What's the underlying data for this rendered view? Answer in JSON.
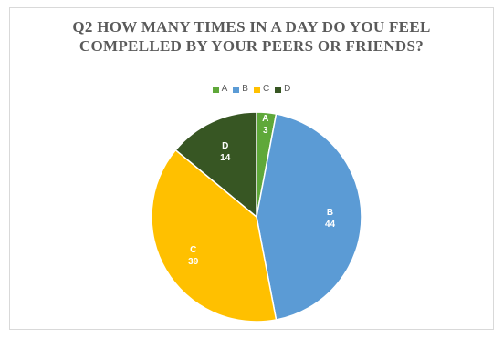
{
  "chart_data": {
    "type": "pie",
    "title_lines": [
      "Q2 HOW MANY TIMES IN A DAY DO YOU FEEL",
      "COMPELLED BY YOUR PEERS OR FRIENDS?"
    ],
    "categories": [
      "A",
      "B",
      "C",
      "D"
    ],
    "values": [
      3,
      44,
      39,
      14
    ],
    "colors": [
      "#5fa83a",
      "#5b9bd5",
      "#ffc000",
      "#375623"
    ],
    "legend_position": "top"
  }
}
